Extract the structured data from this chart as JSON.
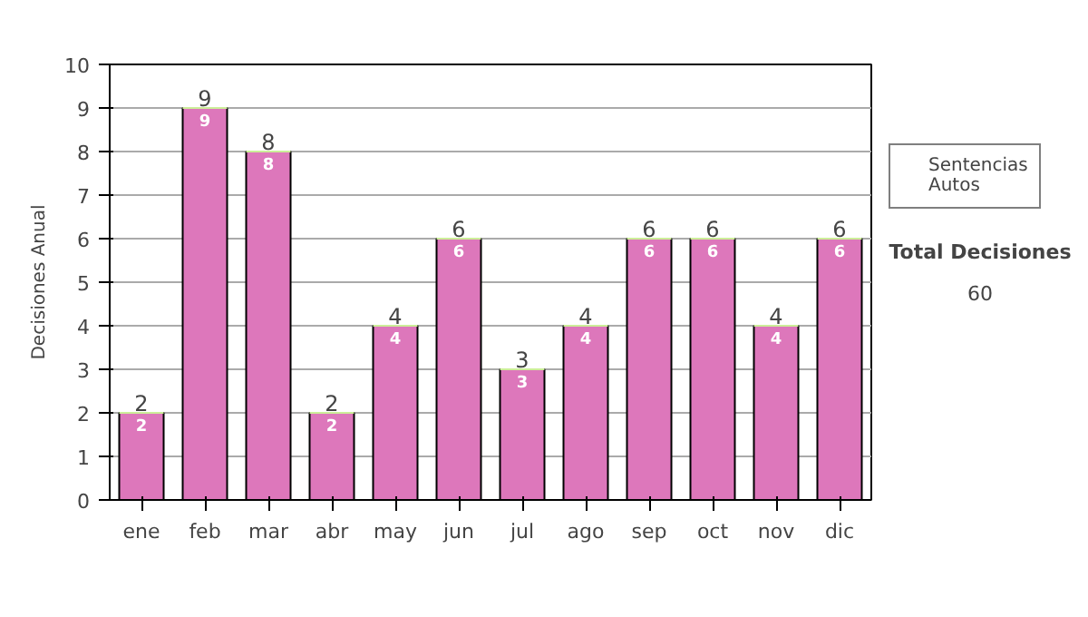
{
  "chart_data": {
    "type": "bar",
    "stacked": true,
    "ylabel": "Decisiones Anual",
    "categories": [
      "ene",
      "feb",
      "mar",
      "abr",
      "may",
      "jun",
      "jul",
      "ago",
      "sep",
      "oct",
      "nov",
      "dic"
    ],
    "series": [
      {
        "name": "Sentencias",
        "color": "#dd77bb",
        "values": [
          2,
          9,
          8,
          2,
          4,
          6,
          3,
          4,
          6,
          6,
          4,
          6
        ],
        "value_labels": [
          "2",
          "9",
          "8",
          "2",
          "4",
          "6",
          "3",
          "4",
          "6",
          "6",
          "4",
          "6"
        ]
      },
      {
        "name": "Autos",
        "color": "#ccee99",
        "values": [
          0,
          0,
          0,
          0,
          0,
          0,
          0,
          0,
          0,
          0,
          0,
          0
        ]
      }
    ],
    "totals": [
      "2",
      "9",
      "8",
      "2",
      "4",
      "6",
      "3",
      "4",
      "6",
      "6",
      "4",
      "6"
    ],
    "ylim": [
      0,
      10
    ],
    "yticks": [
      0,
      1,
      2,
      3,
      4,
      5,
      6,
      7,
      8,
      9,
      10
    ],
    "grid": "y",
    "legend": "right",
    "annotations": [
      "Total Decisiones",
      "60"
    ]
  }
}
